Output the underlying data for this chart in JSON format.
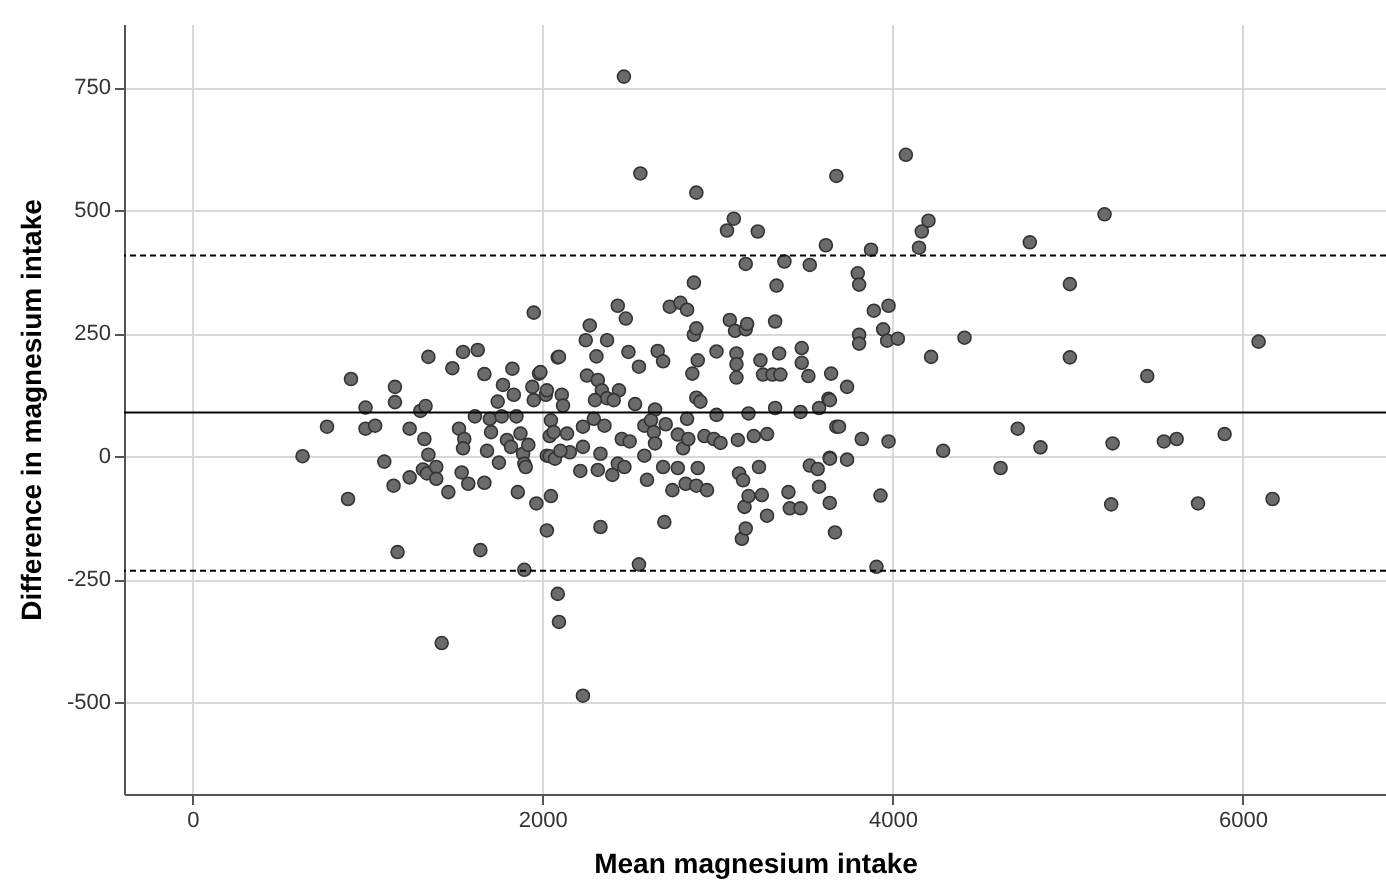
{
  "chart_data": {
    "type": "scatter",
    "xlabel": "Mean magnesium intake",
    "ylabel": "Difference in magnesium intake",
    "xlim": [
      -390,
      6820
    ],
    "ylim": [
      -687,
      879
    ],
    "xticks": [
      0,
      2000,
      4000,
      6000
    ],
    "yticks": [
      -500,
      -250,
      0,
      250,
      500,
      750
    ],
    "grid": true,
    "marker": "circle",
    "ref_lines": [
      {
        "axis": "y",
        "value": 89,
        "color": "#000000",
        "line_style": "solid"
      },
      {
        "axis": "y",
        "value": 408,
        "color": "#000000",
        "line_style": "dashed"
      },
      {
        "axis": "y",
        "value": -233,
        "color": "#000000",
        "line_style": "dashed"
      }
    ],
    "series": [
      {
        "color": "#6b6b6b",
        "x": [
          630,
          770,
          890,
          907,
          990,
          990,
          1045,
          1097,
          1150,
          1158,
          1158,
          1173,
          1242,
          1242,
          1303,
          1333,
          1326,
          1349,
          1318,
          1341,
          1394,
          1394,
          1349,
          1425,
          1463,
          1486,
          1547,
          1631,
          1524,
          1554,
          1547,
          1539,
          1577,
          1615,
          1646,
          1669,
          1669,
          1684,
          1700,
          1707,
          1752,
          1745,
          1775,
          1768,
          1798,
          1829,
          1837,
          1852,
          1821,
          1860,
          1875,
          1890,
          1897,
          1905,
          1920,
          1897,
          1951,
          1943,
          1966,
          1981,
          1951,
          2020,
          2026,
          2042,
          2049,
          2026,
          2088,
          2088,
          2095,
          2560,
          2880,
          3680,
          3055,
          3094,
          3231,
          3620,
          3162,
          3383,
          3528,
          3338,
          2866,
          2431,
          2477,
          2728,
          2789,
          2827,
          2271,
          2248,
          2370,
          2095,
          2309,
          2492,
          2552,
          2659,
          2690,
          2866,
          2880,
          2888,
          2857,
          2995,
          3071,
          3101,
          3162,
          3170,
          3109,
          3109,
          3109,
          3246,
          3261,
          3315,
          3360,
          3330,
          3353,
          3482,
          3482,
          3520,
          3650,
          2255,
          2317,
          2340,
          2438,
          2370,
          2301,
          2408,
          2530,
          2644,
          2880,
          2903,
          2827,
          2995,
          3178,
          3330,
          3475,
          3581,
          3635,
          3680,
          1989,
          2026,
          2111,
          2118,
          2049,
          2065,
          2042,
          2072,
          2141,
          2157,
          2103,
          2232,
          2232,
          2294,
          2355,
          2332,
          2217,
          2317,
          2400,
          2431,
          2469,
          2454,
          2499,
          2583,
          2583,
          2621,
          2637,
          2644,
          2690,
          2705,
          2774,
          2774,
          2804,
          2834,
          2888,
          2926,
          2980,
          3018,
          3117,
          3208,
          3284,
          2598,
          2743,
          2819,
          2880,
          2941,
          3124,
          3147,
          3238,
          3155,
          3178,
          3254,
          3284,
          3140,
          3162,
          3406,
          3414,
          3475,
          3528,
          3573,
          3581,
          3642,
          3642,
          3672,
          2332,
          2697,
          2552,
          2232,
          4077,
          3878,
          4152,
          4168,
          4206,
          4785,
          5212,
          3802,
          3810,
          3894,
          3978,
          3947,
          3970,
          4031,
          3810,
          3810,
          4221,
          4412,
          5014,
          5014,
          3741,
          3643,
          3695,
          3825,
          3978,
          4290,
          4716,
          4846,
          5258,
          3643,
          3741,
          3932,
          4618,
          3909,
          5250,
          5456,
          6092,
          5551,
          5624,
          5898,
          5746,
          6172,
          2466
        ],
        "values": [
          0,
          60,
          -87,
          157,
          99,
          56,
          62,
          -11,
          -60,
          141,
          110,
          -195,
          -43,
          56,
          92,
          102,
          35,
          3,
          -27,
          -35,
          -22,
          -46,
          202,
          -380,
          -73,
          179,
          212,
          216,
          56,
          35,
          16,
          -33,
          -56,
          81,
          -191,
          -54,
          167,
          11,
          76,
          49,
          -13,
          111,
          145,
          81,
          33,
          178,
          125,
          81,
          19,
          -73,
          46,
          5,
          -15,
          -22,
          23,
          -231,
          292,
          141,
          -96,
          168,
          114,
          125,
          -151,
          41,
          -81,
          1,
          201,
          -280,
          -337,
          575,
          536,
          570,
          459,
          483,
          457,
          429,
          391,
          396,
          389,
          347,
          353,
          306,
          280,
          304,
          312,
          298,
          266,
          236,
          236,
          202,
          203,
          212,
          182,
          214,
          193,
          247,
          260,
          195,
          168,
          213,
          277,
          255,
          258,
          269,
          209,
          187,
          160,
          195,
          166,
          166,
          166,
          274,
          209,
          220,
          190,
          163,
          168,
          164,
          155,
          134,
          134,
          118,
          114,
          114,
          106,
          95,
          119,
          111,
          76,
          84,
          87,
          98,
          90,
          98,
          117,
          60,
          171,
          134,
          125,
          103,
          73,
          49,
          0,
          -5,
          46,
          8,
          11,
          60,
          19,
          76,
          62,
          5,
          -30,
          -28,
          -38,
          -15,
          -22,
          35,
          30,
          62,
          1,
          73,
          49,
          26,
          -22,
          65,
          -24,
          44,
          16,
          35,
          -24,
          41,
          35,
          27,
          33,
          41,
          45,
          -48,
          -69,
          -56,
          -60,
          -69,
          -35,
          -49,
          -22,
          -103,
          -81,
          -79,
          -121,
          -168,
          -147,
          -73,
          -106,
          -106,
          -19,
          -26,
          -62,
          -3,
          -95,
          -155,
          -144,
          -134,
          -220,
          -487,
          613,
          420,
          424,
          457,
          479,
          435,
          492,
          372,
          349,
          296,
          306,
          258,
          235,
          239,
          247,
          229,
          202,
          241,
          350,
          201,
          141,
          114,
          60,
          35,
          30,
          11,
          56,
          18,
          26,
          -5,
          -7,
          -80,
          -24,
          -225,
          -98,
          163,
          233,
          30,
          35,
          45,
          -96,
          -87,
          772
        ]
      }
    ]
  }
}
